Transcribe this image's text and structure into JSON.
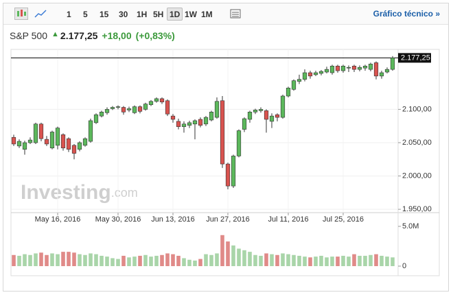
{
  "toolbar": {
    "intervals": [
      "1",
      "5",
      "15",
      "30",
      "1H",
      "5H",
      "1D",
      "1W",
      "1M"
    ],
    "selected": "1D",
    "link": "Gráfico técnico »"
  },
  "header": {
    "name": "S&P 500",
    "price": "2.177,25",
    "change": "+18,00",
    "change_pct": "(+0,83%)"
  },
  "chart_data": {
    "type": "candlestick",
    "watermark": [
      "Investing",
      ".com"
    ],
    "open": [
      2058,
      2045,
      2040,
      2050,
      2050,
      2078,
      2055,
      2042,
      2046,
      2062,
      2056,
      2046,
      2040,
      2046,
      2052,
      2080,
      2090,
      2095,
      2101,
      2103,
      2103,
      2099,
      2095,
      2104,
      2100,
      2107,
      2112,
      2116,
      2113,
      2090,
      2082,
      2074,
      2076,
      2078,
      2085,
      2078,
      2084,
      2088,
      2113,
      2018,
      1985,
      2030,
      2070,
      2085,
      2096,
      2098,
      2098,
      2082,
      2092,
      2088,
      2120,
      2130,
      2142,
      2145,
      2155,
      2152,
      2154,
      2156,
      2155,
      2165,
      2158,
      2162,
      2165,
      2160,
      2162,
      2160,
      2170,
      2150,
      2156,
      2160
    ],
    "high": [
      2062,
      2055,
      2053,
      2058,
      2080,
      2080,
      2060,
      2068,
      2074,
      2064,
      2058,
      2048,
      2052,
      2058,
      2086,
      2094,
      2098,
      2103,
      2105,
      2106,
      2105,
      2104,
      2106,
      2106,
      2110,
      2114,
      2118,
      2118,
      2115,
      2093,
      2086,
      2082,
      2083,
      2085,
      2088,
      2090,
      2098,
      2118,
      2120,
      2020,
      2032,
      2070,
      2088,
      2098,
      2101,
      2103,
      2100,
      2094,
      2094,
      2122,
      2134,
      2145,
      2152,
      2160,
      2158,
      2158,
      2159,
      2164,
      2167,
      2167,
      2167,
      2166,
      2167,
      2166,
      2167,
      2170,
      2172,
      2158,
      2163,
      2180
    ],
    "low": [
      2045,
      2042,
      2032,
      2048,
      2048,
      2052,
      2045,
      2040,
      2040,
      2038,
      2036,
      2025,
      2037,
      2044,
      2050,
      2078,
      2088,
      2092,
      2099,
      2100,
      2092,
      2096,
      2093,
      2094,
      2098,
      2105,
      2110,
      2108,
      2090,
      2080,
      2070,
      2065,
      2072,
      2055,
      2073,
      2075,
      2082,
      2086,
      2012,
      1980,
      1982,
      2028,
      2066,
      2080,
      2093,
      2095,
      2065,
      2072,
      2082,
      2086,
      2118,
      2128,
      2138,
      2142,
      2146,
      2150,
      2151,
      2154,
      2152,
      2155,
      2155,
      2156,
      2156,
      2157,
      2158,
      2157,
      2145,
      2146,
      2154,
      2158
    ],
    "close": [
      2048,
      2052,
      2050,
      2054,
      2078,
      2056,
      2048,
      2066,
      2072,
      2042,
      2040,
      2034,
      2050,
      2056,
      2083,
      2092,
      2096,
      2100,
      2103,
      2104,
      2096,
      2101,
      2104,
      2097,
      2108,
      2112,
      2116,
      2111,
      2093,
      2085,
      2074,
      2078,
      2080,
      2083,
      2076,
      2088,
      2096,
      2112,
      2018,
      1985,
      2030,
      2068,
      2086,
      2096,
      2099,
      2100,
      2085,
      2090,
      2088,
      2120,
      2132,
      2143,
      2145,
      2155,
      2150,
      2155,
      2157,
      2160,
      2165,
      2158,
      2165,
      2163,
      2160,
      2163,
      2165,
      2168,
      2150,
      2155,
      2160,
      2177.25
    ],
    "volume": [
      1.4,
      1.3,
      1.5,
      1.4,
      1.6,
      1.7,
      1.4,
      1.6,
      1.5,
      1.8,
      1.8,
      1.7,
      1.5,
      1.4,
      1.6,
      1.5,
      1.3,
      1.2,
      1.0,
      0.9,
      1.3,
      1.1,
      1.2,
      1.3,
      1.4,
      1.2,
      1.3,
      1.4,
      1.6,
      1.5,
      1.3,
      1.0,
      0.8,
      0.7,
      0.9,
      1.5,
      1.4,
      1.6,
      3.9,
      3.1,
      2.6,
      2.2,
      2.0,
      1.8,
      1.4,
      1.3,
      1.6,
      1.5,
      1.4,
      1.6,
      1.5,
      1.4,
      1.3,
      1.2,
      1.1,
      1.2,
      1.3,
      1.1,
      1.2,
      1.2,
      1.3,
      1.2,
      1.5,
      1.3,
      1.3,
      1.4,
      1.5,
      1.3,
      1.2,
      1.1
    ],
    "up_color": "#5cb85c",
    "down_color": "#d9534f",
    "volume_up_color": "#a9d5a9",
    "volume_down_color": "#e08a88",
    "xlim": [
      -0.5,
      70
    ],
    "xticks": [
      {
        "value": 8,
        "label": "May 16, 2016"
      },
      {
        "value": 19,
        "label": "May 30, 2016"
      },
      {
        "value": 29,
        "label": "Jun 13, 2016"
      },
      {
        "value": 39,
        "label": "Jun 27, 2016"
      },
      {
        "value": 50,
        "label": "Jul 11, 2016"
      },
      {
        "value": 60,
        "label": "Jul 25, 2016"
      }
    ],
    "ylim": [
      1945,
      2190
    ],
    "yticks": [
      {
        "value": 1950,
        "label": "1.950,00"
      },
      {
        "value": 2000,
        "label": "2.000,00"
      },
      {
        "value": 2050,
        "label": "2.050,00"
      },
      {
        "value": 2100,
        "label": "2.100,00"
      }
    ],
    "last_price": {
      "value": 2177.25,
      "label": "2.177,25"
    },
    "volume_lim": [
      0,
      5
    ],
    "volume_ticks": [
      {
        "value": 0,
        "label": "0"
      },
      {
        "value": 5,
        "label": "5.0M"
      }
    ],
    "grid": true
  }
}
